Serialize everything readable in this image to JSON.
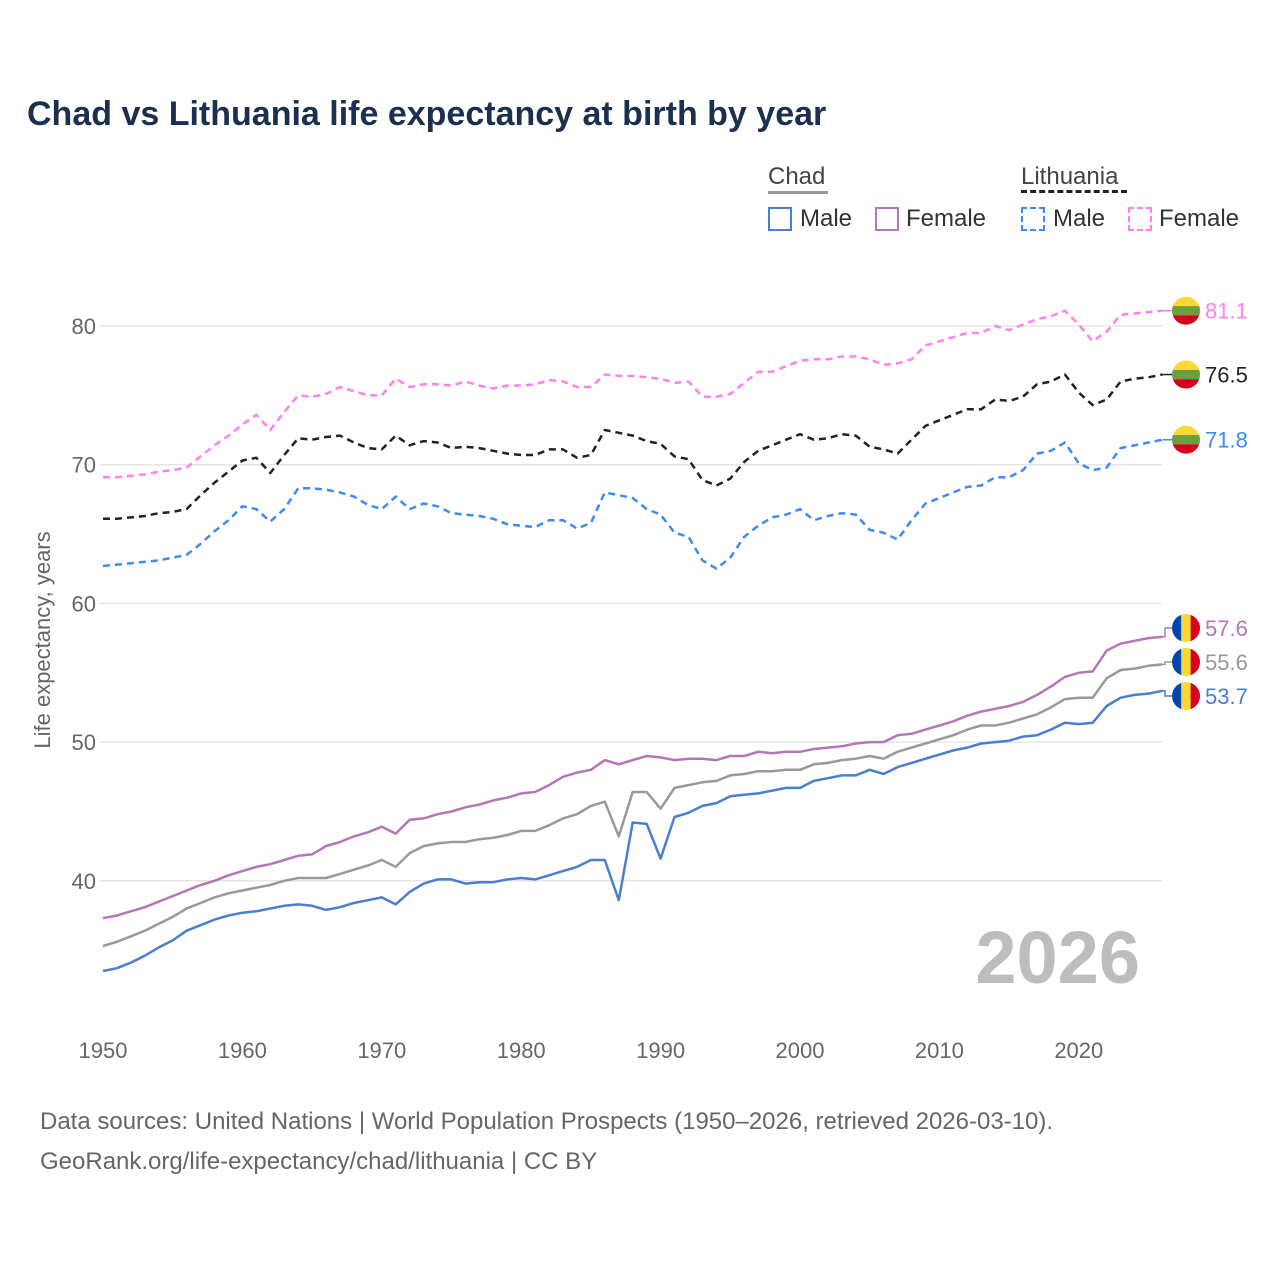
{
  "chart_data": {
    "type": "line",
    "title": "Chad vs Lithuania life expectancy at birth by year",
    "xlabel": "",
    "ylabel": "Life expectancy, years",
    "xlim": [
      1950,
      2026
    ],
    "ylim": [
      30,
      85
    ],
    "x_ticks": [
      "1950",
      "1960",
      "1970",
      "1980",
      "1990",
      "2000",
      "2010",
      "2020"
    ],
    "y_ticks": [
      "40",
      "50",
      "60",
      "70",
      "80"
    ],
    "grid": true,
    "watermark_year": "2026",
    "legend": {
      "groups": [
        {
          "name": "Chad",
          "entries": [
            "Male",
            "Female"
          ]
        },
        {
          "name": "Lithuania",
          "entries": [
            "Male",
            "Female"
          ]
        }
      ]
    },
    "x_start": 1950,
    "series": [
      {
        "name": "Lithuania Female",
        "color": "#ff80f0",
        "dashed": true,
        "end_label": "81.1",
        "flag": "lithuania",
        "values": [
          69.1,
          69.1,
          69.2,
          69.3,
          69.5,
          69.6,
          69.8,
          70.6,
          71.4,
          72.1,
          72.9,
          73.6,
          72.5,
          73.8,
          75.0,
          74.9,
          75.1,
          75.6,
          75.3,
          75.0,
          75.0,
          76.2,
          75.6,
          75.8,
          75.8,
          75.7,
          76.0,
          75.7,
          75.5,
          75.7,
          75.7,
          75.8,
          76.1,
          76.0,
          75.6,
          75.6,
          76.5,
          76.4,
          76.4,
          76.3,
          76.2,
          75.9,
          76.0,
          74.9,
          74.9,
          75.1,
          75.9,
          76.7,
          76.7,
          77.1,
          77.5,
          77.6,
          77.6,
          77.8,
          77.8,
          77.6,
          77.2,
          77.3,
          77.6,
          78.6,
          78.9,
          79.2,
          79.5,
          79.5,
          80.0,
          79.7,
          80.1,
          80.5,
          80.7,
          81.1,
          80.1,
          78.9,
          79.6,
          80.8,
          80.9,
          81.0,
          81.1
        ]
      },
      {
        "name": "Lithuania Total",
        "color": "#222222",
        "dashed": true,
        "end_label": "76.5",
        "flag": "lithuania",
        "values": [
          66.1,
          66.1,
          66.2,
          66.3,
          66.5,
          66.6,
          66.8,
          67.8,
          68.7,
          69.5,
          70.3,
          70.5,
          69.4,
          70.7,
          71.9,
          71.8,
          72.0,
          72.1,
          71.6,
          71.2,
          71.1,
          72.1,
          71.4,
          71.7,
          71.6,
          71.2,
          71.3,
          71.2,
          71.0,
          70.8,
          70.7,
          70.7,
          71.1,
          71.1,
          70.5,
          70.7,
          72.5,
          72.3,
          72.1,
          71.7,
          71.5,
          70.6,
          70.4,
          68.9,
          68.5,
          69.0,
          70.2,
          71.0,
          71.4,
          71.8,
          72.2,
          71.8,
          71.9,
          72.2,
          72.1,
          71.3,
          71.1,
          70.8,
          71.8,
          72.8,
          73.2,
          73.6,
          74.0,
          74.0,
          74.7,
          74.6,
          74.9,
          75.8,
          76.0,
          76.5,
          75.2,
          74.3,
          74.7,
          76.0,
          76.2,
          76.3,
          76.5
        ]
      },
      {
        "name": "Lithuania Male",
        "color": "#3d8af7",
        "dashed": true,
        "end_label": "71.8",
        "flag": "lithuania",
        "values": [
          62.7,
          62.8,
          62.9,
          63.0,
          63.1,
          63.3,
          63.5,
          64.3,
          65.2,
          66.0,
          67.0,
          66.8,
          65.9,
          66.8,
          68.3,
          68.3,
          68.2,
          68.0,
          67.7,
          67.1,
          66.8,
          67.7,
          66.8,
          67.2,
          67.0,
          66.5,
          66.4,
          66.3,
          66.1,
          65.7,
          65.6,
          65.5,
          66.0,
          66.0,
          65.4,
          65.8,
          68.0,
          67.8,
          67.6,
          66.8,
          66.4,
          65.1,
          64.8,
          63.1,
          62.5,
          63.3,
          64.8,
          65.6,
          66.2,
          66.4,
          66.8,
          66.0,
          66.3,
          66.5,
          66.4,
          65.3,
          65.1,
          64.6,
          66.0,
          67.2,
          67.6,
          68.0,
          68.4,
          68.5,
          69.1,
          69.1,
          69.6,
          70.8,
          71.0,
          71.6,
          70.1,
          69.6,
          69.8,
          71.2,
          71.4,
          71.6,
          71.8
        ]
      },
      {
        "name": "Chad Female",
        "color": "#b476b9",
        "dashed": false,
        "end_label": "57.6",
        "flag": "chad",
        "values": [
          37.3,
          37.5,
          37.8,
          38.1,
          38.5,
          38.9,
          39.3,
          39.7,
          40.0,
          40.4,
          40.7,
          41.0,
          41.2,
          41.5,
          41.8,
          41.9,
          42.5,
          42.8,
          43.2,
          43.5,
          43.9,
          43.4,
          44.4,
          44.5,
          44.8,
          45.0,
          45.3,
          45.5,
          45.8,
          46.0,
          46.3,
          46.4,
          46.9,
          47.5,
          47.8,
          48.0,
          48.7,
          48.4,
          48.7,
          49.0,
          48.9,
          48.7,
          48.8,
          48.8,
          48.7,
          49.0,
          49.0,
          49.3,
          49.2,
          49.3,
          49.3,
          49.5,
          49.6,
          49.7,
          49.9,
          50.0,
          50.0,
          50.5,
          50.6,
          50.9,
          51.2,
          51.5,
          51.9,
          52.2,
          52.4,
          52.6,
          52.9,
          53.4,
          54.0,
          54.7,
          55.0,
          55.1,
          56.6,
          57.1,
          57.3,
          57.5,
          57.6
        ]
      },
      {
        "name": "Chad Total",
        "color": "#999999",
        "dashed": false,
        "end_label": "55.6",
        "flag": "chad",
        "values": [
          35.3,
          35.6,
          36.0,
          36.4,
          36.9,
          37.4,
          38.0,
          38.4,
          38.8,
          39.1,
          39.3,
          39.5,
          39.7,
          40.0,
          40.2,
          40.2,
          40.2,
          40.5,
          40.8,
          41.1,
          41.5,
          41.0,
          42.0,
          42.5,
          42.7,
          42.8,
          42.8,
          43.0,
          43.1,
          43.3,
          43.6,
          43.6,
          44.0,
          44.5,
          44.8,
          45.4,
          45.7,
          43.2,
          46.4,
          46.4,
          45.2,
          46.7,
          46.9,
          47.1,
          47.2,
          47.6,
          47.7,
          47.9,
          47.9,
          48.0,
          48.0,
          48.4,
          48.5,
          48.7,
          48.8,
          49.0,
          48.8,
          49.3,
          49.6,
          49.9,
          50.2,
          50.5,
          50.9,
          51.2,
          51.2,
          51.4,
          51.7,
          52.0,
          52.5,
          53.1,
          53.2,
          53.2,
          54.6,
          55.2,
          55.3,
          55.5,
          55.6
        ]
      },
      {
        "name": "Chad Male",
        "color": "#4a7fcf",
        "dashed": false,
        "end_label": "53.7",
        "flag": "chad",
        "values": [
          33.5,
          33.7,
          34.1,
          34.6,
          35.2,
          35.7,
          36.4,
          36.8,
          37.2,
          37.5,
          37.7,
          37.8,
          38.0,
          38.2,
          38.3,
          38.2,
          37.9,
          38.1,
          38.4,
          38.6,
          38.8,
          38.3,
          39.2,
          39.8,
          40.1,
          40.1,
          39.8,
          39.9,
          39.9,
          40.1,
          40.2,
          40.1,
          40.4,
          40.7,
          41.0,
          41.5,
          41.5,
          38.6,
          44.2,
          44.1,
          41.6,
          44.6,
          44.9,
          45.4,
          45.6,
          46.1,
          46.2,
          46.3,
          46.5,
          46.7,
          46.7,
          47.2,
          47.4,
          47.6,
          47.6,
          48.0,
          47.7,
          48.2,
          48.5,
          48.8,
          49.1,
          49.4,
          49.6,
          49.9,
          50.0,
          50.1,
          50.4,
          50.5,
          50.9,
          51.4,
          51.3,
          51.4,
          52.6,
          53.2,
          53.4,
          53.5,
          53.7
        ]
      }
    ]
  },
  "legend": {
    "chad": "Chad",
    "lithuania": "Lithuania",
    "male": "Male",
    "female": "Female"
  },
  "footer": {
    "line1": "Data sources: United Nations | World Population Prospects (1950–2026, retrieved 2026-03-10).",
    "line2": "GeoRank.org/life-expectancy/chad/lithuania | CC BY"
  }
}
